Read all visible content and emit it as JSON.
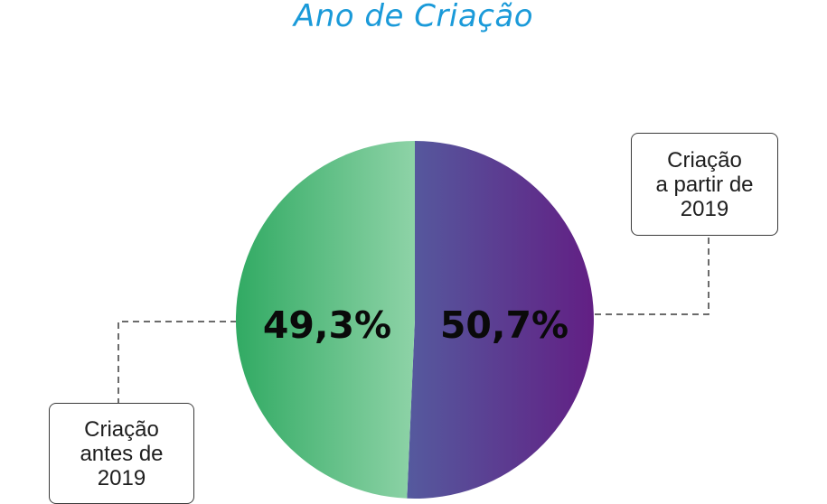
{
  "chart_data": {
    "type": "pie",
    "title": "Ano de Criação",
    "slices": [
      {
        "label": "Criação a partir de 2019",
        "label_lines": [
          "Criação",
          "a partir de",
          "2019"
        ],
        "value": 50.7,
        "value_label": "50,7%",
        "color_start": "#555a9e",
        "color_end": "#621f84"
      },
      {
        "label": "Criação antes de 2019",
        "label_lines": [
          "Criação",
          "antes de",
          "2019"
        ],
        "value": 49.3,
        "value_label": "49,3%",
        "color_start": "#31aa63",
        "color_end": "#8ed3a7"
      }
    ],
    "legend": "callouts",
    "colors": {
      "title": "#1a9ad9",
      "leader_line": "#3a3a3a"
    }
  }
}
